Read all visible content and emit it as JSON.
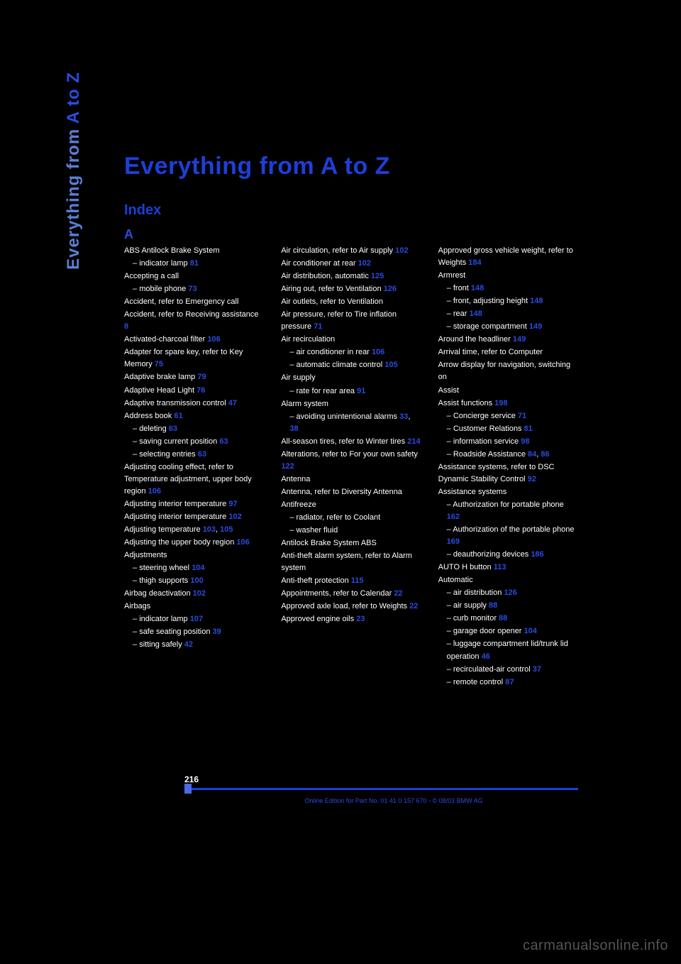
{
  "sidebar": {
    "dim": "Everything from ",
    "bright": "A to Z"
  },
  "title": "Everything from A to Z",
  "subtitle": "Index",
  "sectionLetter": "A",
  "pageNumber": "216",
  "footer": "Online Edition for Part No. 01 41 0 157 670 - © 08/03 BMW AG",
  "watermark": "carmanualsonline.info",
  "columns": [
    [
      {
        "t": "ABS Antilock Brake System",
        "sub": 0
      },
      {
        "t": "indicator lamp",
        "pg": "81",
        "sub": 1
      },
      {
        "t": "Accepting a call",
        "sub": 0
      },
      {
        "t": "mobile phone",
        "pg": "73",
        "sub": 1
      },
      {
        "t": "Accident, refer to Emergency call",
        "sub": 0
      },
      {
        "t": "Accident, refer to Receiving assistance",
        "pg": "8",
        "sub": 0
      },
      {
        "t": "Activated-charcoal filter",
        "pg": "106",
        "sub": 0
      },
      {
        "t": "Adapter for spare key, refer to Key Memory",
        "pg": "75",
        "sub": 0
      },
      {
        "t": "Adaptive brake lamp",
        "pg": "79",
        "sub": 0
      },
      {
        "t": "Adaptive Head Light",
        "pg": "76",
        "sub": 0
      },
      {
        "t": "Adaptive transmission control",
        "pg": "47",
        "sub": 0
      },
      {
        "t": "Address book",
        "pg": "61",
        "sub": 0
      },
      {
        "t": "deleting",
        "pg": "63",
        "sub": 1
      },
      {
        "t": "saving current position",
        "pg": "63",
        "sub": 1
      },
      {
        "t": "selecting entries",
        "pg": "63",
        "sub": 1
      },
      {
        "t": "Adjusting cooling effect, refer to Temperature adjustment, upper body region",
        "pg": "106",
        "sub": 0
      },
      {
        "t": "Adjusting interior temperature",
        "pg": "97",
        "sub": 0
      },
      {
        "t": "Adjusting interior temperature",
        "pg": "102",
        "sub": 0
      },
      {
        "t": "Adjusting temperature",
        "pg": "103",
        "pg2": "105",
        "sub": 0
      },
      {
        "t": "Adjusting the upper body region",
        "pg": "106",
        "sub": 0
      },
      {
        "t": "Adjustments",
        "sub": 0
      },
      {
        "t": "steering wheel",
        "pg": "104",
        "sub": 1
      },
      {
        "t": "thigh supports",
        "pg": "100",
        "sub": 1
      },
      {
        "t": "Airbag deactivation",
        "pg": "102",
        "sub": 0
      },
      {
        "t": "Airbags",
        "sub": 0
      },
      {
        "t": "indicator lamp",
        "pg": "107",
        "sub": 1
      },
      {
        "t": "safe seating position",
        "pg": "39",
        "sub": 1
      },
      {
        "t": "sitting safely",
        "pg": "42",
        "sub": 1
      }
    ],
    [
      {
        "t": "Air circulation, refer to Air supply",
        "pg": "102",
        "sub": 0
      },
      {
        "t": "Air conditioner at rear",
        "pg": "102",
        "sub": 0
      },
      {
        "t": "Air distribution, automatic",
        "pg": "125",
        "sub": 0
      },
      {
        "t": "Airing out, refer to Ventilation",
        "pg": "126",
        "sub": 0
      },
      {
        "t": "Air outlets, refer to Ventilation",
        "sub": 0
      },
      {
        "t": "Air pressure, refer to Tire inflation pressure",
        "pg": "71",
        "sub": 0
      },
      {
        "t": "Air recirculation",
        "sub": 0
      },
      {
        "t": "air conditioner in rear",
        "pg": "106",
        "sub": 1
      },
      {
        "t": "automatic climate control",
        "pg": "105",
        "sub": 1
      },
      {
        "t": "Air supply",
        "sub": 0
      },
      {
        "t": "rate for rear area",
        "pg": "91",
        "sub": 1
      },
      {
        "t": "Alarm system",
        "sub": 0
      },
      {
        "t": "avoiding unintentional alarms",
        "pg": "33",
        "pg2": "38",
        "sub": 1
      },
      {
        "t": "All-season tires, refer to Winter tires",
        "pg": "214",
        "sub": 0
      },
      {
        "t": "Alterations, refer to For your own safety",
        "pg": "122",
        "sub": 0
      },
      {
        "t": "Antenna",
        "sub": 0
      },
      {
        "t": "Antenna, refer to Diversity Antenna",
        "sub": 0
      },
      {
        "t": "Antifreeze",
        "sub": 0
      },
      {
        "t": "radiator, refer to Coolant",
        "sub": 1
      },
      {
        "t": "washer fluid",
        "sub": 1
      },
      {
        "t": "Antilock Brake System ABS",
        "sub": 0
      },
      {
        "t": "Anti-theft alarm system, refer to Alarm system",
        "sub": 0
      },
      {
        "t": "Anti-theft protection",
        "pg": "115",
        "sub": 0
      },
      {
        "t": "Appointments, refer to Calendar",
        "pg": "22",
        "sub": 0
      },
      {
        "t": "Approved axle load, refer to Weights",
        "pg": "22",
        "sub": 0
      },
      {
        "t": "Approved engine oils",
        "pg": "23",
        "sub": 0
      }
    ],
    [
      {
        "t": "Approved gross vehicle weight, refer to Weights",
        "pg": "184",
        "sub": 0
      },
      {
        "t": "Armrest",
        "sub": 0
      },
      {
        "t": "front",
        "pg": "148",
        "sub": 1
      },
      {
        "t": "front, adjusting height",
        "pg": "148",
        "sub": 1
      },
      {
        "t": "rear",
        "pg": "148",
        "sub": 1
      },
      {
        "t": "storage compartment",
        "pg": "149",
        "sub": 1
      },
      {
        "t": "Around the headliner",
        "pg": "149",
        "sub": 0
      },
      {
        "t": "Arrival time, refer to Computer",
        "sub": 0
      },
      {
        "t": "Arrow display for navigation, switching on",
        "sub": 0
      },
      {
        "t": "Assist",
        "sub": 0
      },
      {
        "t": "Assist functions",
        "pg": "198",
        "sub": 0
      },
      {
        "t": "Concierge service",
        "pg": "71",
        "sub": 1
      },
      {
        "t": "Customer Relations",
        "pg": "81",
        "sub": 1
      },
      {
        "t": "information service",
        "pg": "98",
        "sub": 1
      },
      {
        "t": "Roadside Assistance",
        "pg": "84",
        "pg2": "86",
        "sub": 1
      },
      {
        "t": "Assistance systems, refer to DSC Dynamic Stability Control",
        "pg": "92",
        "sub": 0
      },
      {
        "t": "Assistance systems",
        "sub": 0
      },
      {
        "t": "Authorization for portable phone",
        "pg": "162",
        "sub": 1
      },
      {
        "t": "Authorization of the portable phone",
        "pg": "169",
        "sub": 1
      },
      {
        "t": "deauthorizing devices",
        "pg": "186",
        "sub": 1
      },
      {
        "t": "AUTO H button",
        "pg": "113",
        "sub": 0
      },
      {
        "t": "Automatic",
        "sub": 0
      },
      {
        "t": "air distribution",
        "pg": "126",
        "sub": 1
      },
      {
        "t": "air supply",
        "pg": "88",
        "sub": 1
      },
      {
        "t": "curb monitor",
        "pg": "88",
        "sub": 1
      },
      {
        "t": "garage door opener",
        "pg": "104",
        "sub": 1
      },
      {
        "t": "luggage compartment lid/trunk lid operation",
        "pg": "46",
        "sub": 1
      },
      {
        "t": "recirculated-air control",
        "pg": "37",
        "sub": 1
      },
      {
        "t": "remote control",
        "pg": "87",
        "sub": 1
      }
    ]
  ]
}
